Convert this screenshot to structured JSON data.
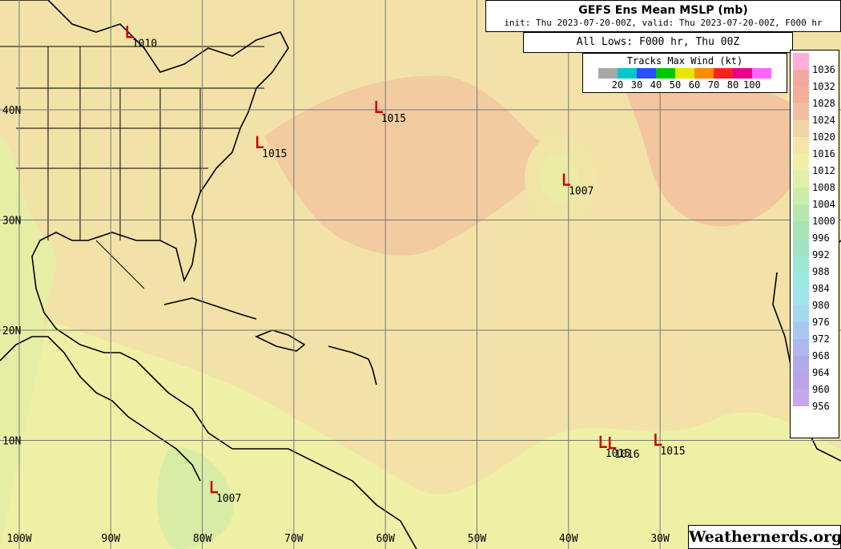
{
  "title": {
    "main": "GEFS Ens Mean MSLP (mb)",
    "sub": "init: Thu 2023-07-20-00Z, valid: Thu 2023-07-20-00Z, F000 hr"
  },
  "lows_label": "All Lows: F000 hr, Thu 00Z",
  "wind_legend": {
    "title": "Tracks Max Wind (kt)",
    "colors": [
      "#a8a8a8",
      "#00c8c8",
      "#2850ff",
      "#00c800",
      "#e6e600",
      "#ff8c00",
      "#ff2020",
      "#e6008c",
      "#ff64ff"
    ],
    "labels": [
      "20",
      "30",
      "40",
      "50",
      "60",
      "70",
      "80",
      "100"
    ]
  },
  "mslp_legend": {
    "levels": [
      {
        "label": "1036",
        "color": "#ffb0d8"
      },
      {
        "label": "1032",
        "color": "#f4a8a0"
      },
      {
        "label": "1028",
        "color": "#f2b09a"
      },
      {
        "label": "1024",
        "color": "#f2bea0"
      },
      {
        "label": "1020",
        "color": "#f2d4a4"
      },
      {
        "label": "1016",
        "color": "#f4e6a8"
      },
      {
        "label": "1012",
        "color": "#f0f0a4"
      },
      {
        "label": "1008",
        "color": "#e0f0a8"
      },
      {
        "label": "1004",
        "color": "#ccecaa"
      },
      {
        "label": "1000",
        "color": "#b8e8ae"
      },
      {
        "label": "996",
        "color": "#a8e4b4"
      },
      {
        "label": "992",
        "color": "#a0e4c4"
      },
      {
        "label": "988",
        "color": "#9ce6d4"
      },
      {
        "label": "984",
        "color": "#9ce8e4"
      },
      {
        "label": "980",
        "color": "#a0e4ee"
      },
      {
        "label": "976",
        "color": "#a4d8f0"
      },
      {
        "label": "972",
        "color": "#a8c8f0"
      },
      {
        "label": "968",
        "color": "#acb8ee"
      },
      {
        "label": "964",
        "color": "#b0aaea"
      },
      {
        "label": "960",
        "color": "#b8a4e6"
      },
      {
        "label": "956",
        "color": "#c4a8ea"
      }
    ]
  },
  "map": {
    "lon_labels": [
      "100W",
      "90W",
      "80W",
      "70W",
      "60W",
      "50W",
      "40W",
      "30W"
    ],
    "lat_labels": [
      "40N",
      "30N",
      "20N",
      "10N"
    ],
    "lows": [
      {
        "label": "1015",
        "lon": -61.0,
        "lat": 39.8
      },
      {
        "label": "1015",
        "lon": -74.0,
        "lat": 36.6
      },
      {
        "label": "1007",
        "lon": -40.5,
        "lat": 33.2
      },
      {
        "label": "1015",
        "lon": -36.5,
        "lat": 9.4
      },
      {
        "label": "1016",
        "lon": -35.5,
        "lat": 9.3
      },
      {
        "label": "1015",
        "lon": -30.5,
        "lat": 9.6
      },
      {
        "label": "1007",
        "lon": -79.0,
        "lat": 5.3
      },
      {
        "label": "1010",
        "lon": -88.2,
        "lat": 46.6
      }
    ]
  },
  "credit": "Weathernerds.org"
}
